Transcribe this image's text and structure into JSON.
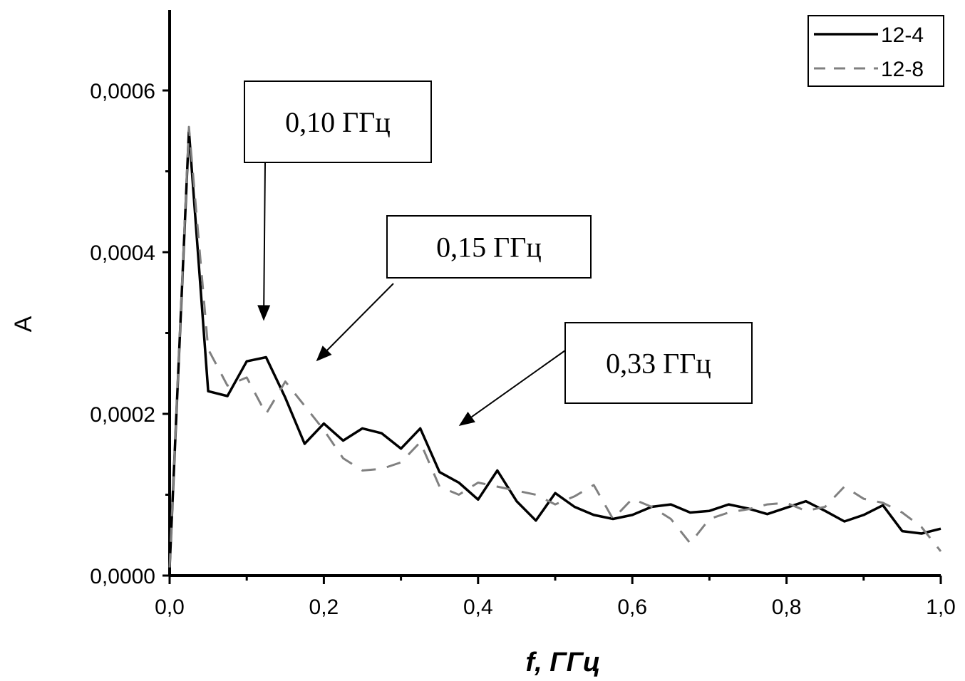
{
  "chart_data": {
    "type": "line",
    "xlabel": "f, ГГц",
    "ylabel": "A",
    "xlim": [
      0.0,
      1.0
    ],
    "ylim": [
      0.0,
      0.0007
    ],
    "x_ticks": [
      "0,0",
      "0,2",
      "0,4",
      "0,6",
      "0,8",
      "1,0"
    ],
    "y_ticks": [
      "0,0000",
      "0,0002",
      "0,0004",
      "0,0006"
    ],
    "legend_position": "top-right",
    "series": [
      {
        "name": "12-4",
        "style": "solid",
        "color": "#000000",
        "x": [
          0.0,
          0.025,
          0.05,
          0.075,
          0.1,
          0.125,
          0.15,
          0.175,
          0.2,
          0.225,
          0.25,
          0.275,
          0.3,
          0.325,
          0.35,
          0.375,
          0.4,
          0.425,
          0.45,
          0.475,
          0.5,
          0.525,
          0.55,
          0.575,
          0.6,
          0.625,
          0.65,
          0.675,
          0.7,
          0.725,
          0.75,
          0.775,
          0.8,
          0.825,
          0.85,
          0.875,
          0.9,
          0.925,
          0.95,
          0.975,
          1.0
        ],
        "y": [
          1e-05,
          0.00055,
          0.000228,
          0.000222,
          0.000265,
          0.00027,
          0.00022,
          0.000163,
          0.000188,
          0.000167,
          0.000182,
          0.000176,
          0.000157,
          0.000182,
          0.000128,
          0.000115,
          9.4e-05,
          0.00013,
          9.2e-05,
          6.8e-05,
          0.000102,
          8.5e-05,
          7.5e-05,
          7e-05,
          7.5e-05,
          8.5e-05,
          8.8e-05,
          7.8e-05,
          8e-05,
          8.8e-05,
          8.3e-05,
          7.6e-05,
          8.4e-05,
          9.2e-05,
          8e-05,
          6.7e-05,
          7.5e-05,
          8.7e-05,
          5.5e-05,
          5.2e-05,
          5.8e-05
        ]
      },
      {
        "name": "12-8",
        "style": "dashed",
        "color": "#808080",
        "x": [
          0.0,
          0.025,
          0.05,
          0.075,
          0.1,
          0.125,
          0.15,
          0.175,
          0.2,
          0.225,
          0.25,
          0.275,
          0.3,
          0.325,
          0.35,
          0.375,
          0.4,
          0.425,
          0.45,
          0.475,
          0.5,
          0.525,
          0.55,
          0.575,
          0.6,
          0.625,
          0.65,
          0.675,
          0.7,
          0.725,
          0.75,
          0.775,
          0.8,
          0.825,
          0.85,
          0.875,
          0.9,
          0.925,
          0.95,
          0.975,
          1.0
        ],
        "y": [
          1e-05,
          0.000555,
          0.00028,
          0.000235,
          0.000245,
          0.0002,
          0.00024,
          0.00021,
          0.00018,
          0.000145,
          0.00013,
          0.000132,
          0.00014,
          0.000165,
          0.00011,
          0.0001,
          0.000115,
          0.00011,
          0.000105,
          0.0001,
          8.8e-05,
          9.8e-05,
          0.000112,
          7e-05,
          9.5e-05,
          8.5e-05,
          7e-05,
          4e-05,
          7e-05,
          7.8e-05,
          8.2e-05,
          8.8e-05,
          9e-05,
          8e-05,
          8.5e-05,
          0.00011,
          9.5e-05,
          9e-05,
          7.8e-05,
          6e-05,
          3e-05
        ]
      }
    ],
    "annotations": [
      {
        "text": "0,10 ГГц",
        "arrow_to": [
          0.122,
          0.000315
        ]
      },
      {
        "text": "0,15 ГГц",
        "arrow_to": [
          0.19,
          0.000265
        ]
      },
      {
        "text": "0,33 ГГц",
        "arrow_to": [
          0.375,
          0.000185
        ]
      }
    ]
  }
}
